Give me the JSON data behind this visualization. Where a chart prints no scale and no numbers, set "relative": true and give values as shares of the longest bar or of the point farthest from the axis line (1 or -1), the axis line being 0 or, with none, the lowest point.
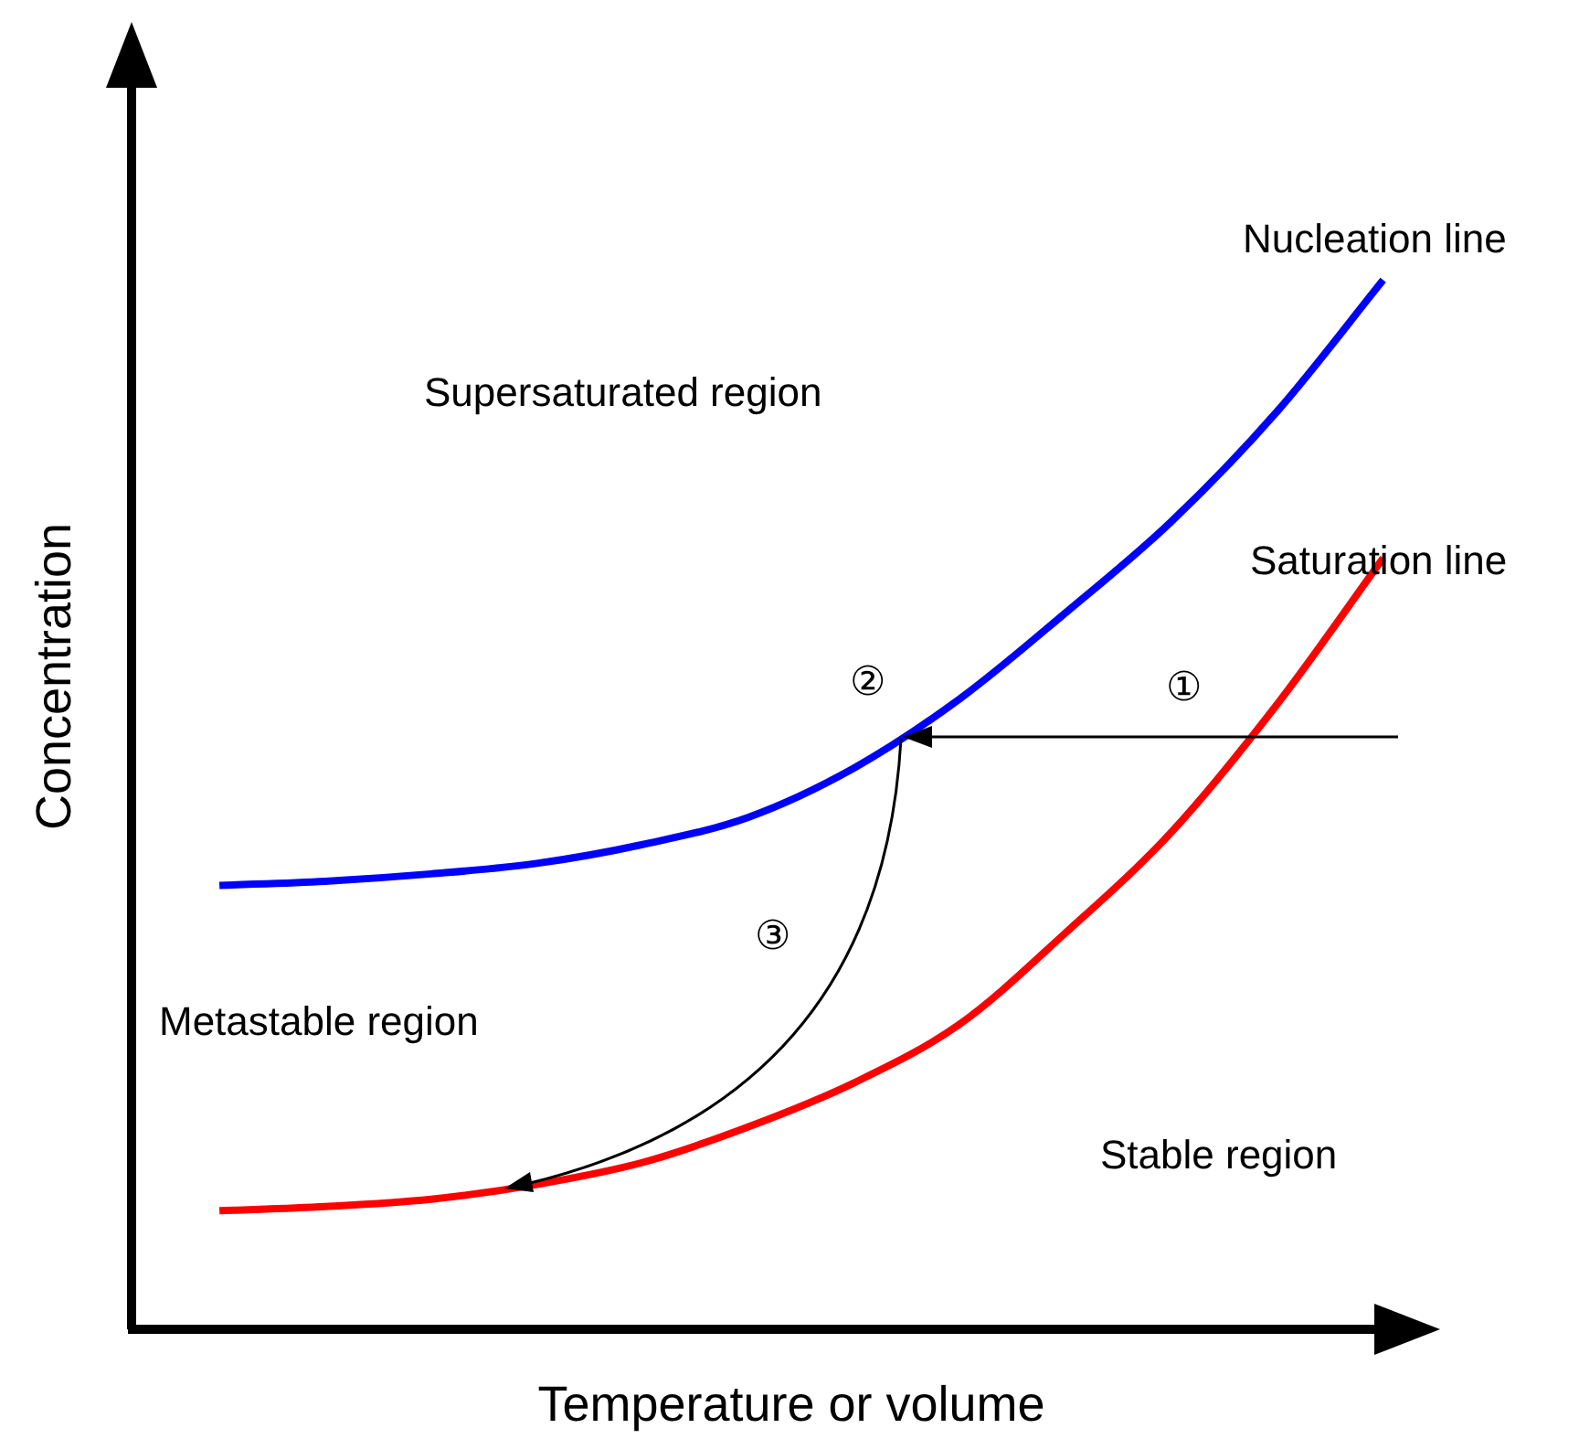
{
  "chart_data": {
    "type": "line",
    "relative": true,
    "xlabel": "Temperature or volume",
    "ylabel": "Concentration",
    "categories": [
      null,
      null,
      null,
      null,
      null,
      null,
      null,
      null,
      null,
      null,
      null,
      null
    ],
    "series": [
      {
        "name": "Nucleation line",
        "color": "#0000ff",
        "values": [
          0.423,
          0.427,
          0.434,
          0.444,
          0.462,
          0.488,
          0.535,
          0.601,
          0.683,
          0.77,
          0.875,
          1
        ]
      },
      {
        "name": "Saturation line",
        "color": "#ff0000",
        "values": [
          0.113,
          0.117,
          0.124,
          0.138,
          0.159,
          0.193,
          0.235,
          0.291,
          0.378,
          0.474,
          0.596,
          0.735
        ]
      }
    ],
    "annotations": [
      "Supersaturated region",
      "Metastable region",
      "Stable region",
      "①",
      "②",
      "③"
    ]
  }
}
